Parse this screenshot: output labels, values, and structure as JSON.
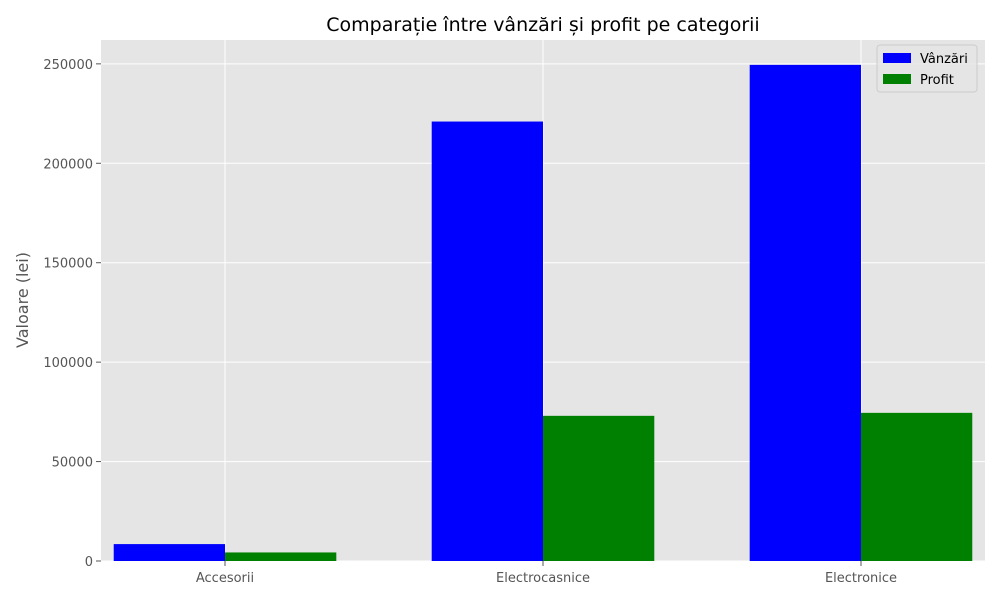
{
  "chart_data": {
    "type": "bar",
    "title": "Comparație între vânzări și profit pe categorii",
    "xlabel": "",
    "ylabel": "Valoare (lei)",
    "categories": [
      "Accesorii",
      "Electrocasnice",
      "Electronice"
    ],
    "series": [
      {
        "name": "Vânzări",
        "values": [
          8500,
          221000,
          249500
        ],
        "color": "#0000ff"
      },
      {
        "name": "Profit",
        "values": [
          4300,
          73000,
          74500
        ],
        "color": "#008000"
      }
    ],
    "ylim": [
      0,
      262000
    ],
    "yticks": [
      0,
      50000,
      100000,
      150000,
      200000,
      250000
    ],
    "grid": true,
    "legend_position": "top-right",
    "plot_background": "#e5e5e5",
    "grid_color": "#ffffff",
    "text_color": "#555555"
  }
}
